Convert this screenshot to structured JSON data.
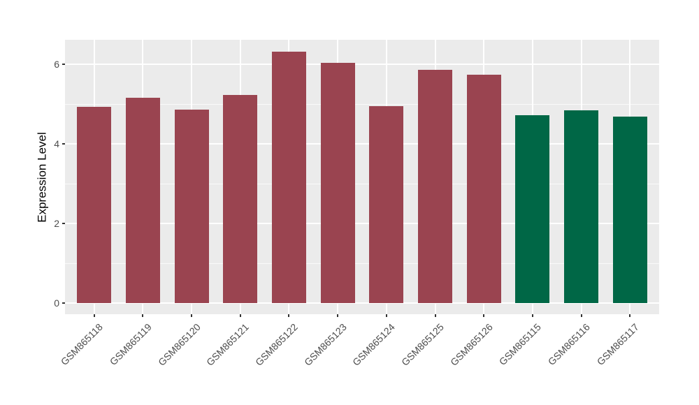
{
  "figure": {
    "background": "#FFFFFF"
  },
  "chart_data": {
    "type": "bar",
    "title": "",
    "xlabel": "",
    "ylabel": "Expression Level",
    "categories": [
      "GSM865118",
      "GSM865119",
      "GSM865120",
      "GSM865121",
      "GSM865122",
      "GSM865123",
      "GSM865124",
      "GSM865125",
      "GSM865126",
      "GSM865115",
      "GSM865116",
      "GSM865117"
    ],
    "values": [
      4.93,
      5.16,
      4.86,
      5.23,
      6.32,
      6.04,
      4.95,
      5.86,
      5.74,
      4.72,
      4.85,
      4.68
    ],
    "bar_colors": [
      "#9A4450",
      "#9A4450",
      "#9A4450",
      "#9A4450",
      "#9A4450",
      "#9A4450",
      "#9A4450",
      "#9A4450",
      "#9A4450",
      "#006746",
      "#006746",
      "#006746"
    ],
    "y_ticks": [
      0,
      2,
      4,
      6
    ],
    "y_minor_ticks": [
      1,
      3,
      5
    ],
    "ylim": [
      0,
      6.63
    ],
    "grid": true,
    "legend_position": "none",
    "panel_background": "#EBEBEB",
    "grid_color": "#FFFFFF",
    "tick_label_color": "#4D4D4D",
    "axis_title_color": "#000000",
    "bar_width_fraction": 0.7
  }
}
